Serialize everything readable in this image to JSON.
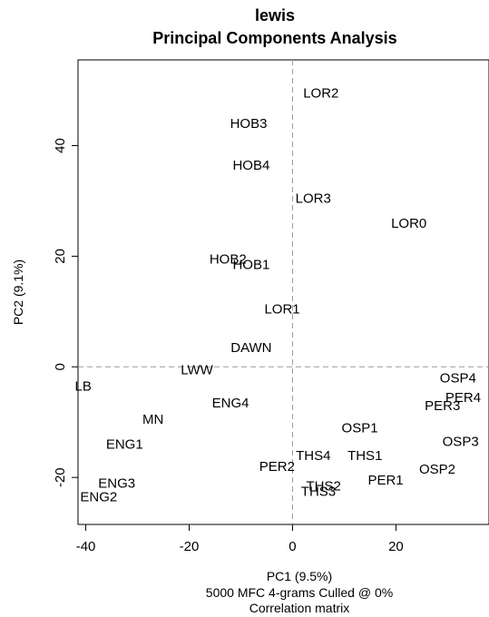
{
  "chart_data": {
    "type": "scatter",
    "title": "lewis",
    "subtitle": "Principal Components Analysis",
    "xlabel": "PC1 (9.5%)",
    "ylabel": "PC2 (9.1%)",
    "notes": [
      "5000 MFC 4-grams Culled @ 0%",
      "Correlation matrix"
    ],
    "xlim": [
      -41.5,
      38
    ],
    "ylim": [
      -28.5,
      55.5
    ],
    "xticks": [
      -40,
      -20,
      0,
      20
    ],
    "yticks": [
      -20,
      0,
      20,
      40
    ],
    "grid": false,
    "reference_lines": {
      "x": 0,
      "y": 0,
      "style": "dashed"
    },
    "points": [
      {
        "label": "LOR2",
        "x": 5.5,
        "y": 49.5
      },
      {
        "label": "HOB3",
        "x": -8.5,
        "y": 44.0
      },
      {
        "label": "HOB4",
        "x": -8.0,
        "y": 36.5
      },
      {
        "label": "LOR3",
        "x": 4.0,
        "y": 30.5
      },
      {
        "label": "LOR0",
        "x": 22.5,
        "y": 26.0
      },
      {
        "label": "HOB2",
        "x": -12.5,
        "y": 19.5
      },
      {
        "label": "HOB1",
        "x": -8.0,
        "y": 18.5
      },
      {
        "label": "LOR1",
        "x": -2.0,
        "y": 10.5
      },
      {
        "label": "DAWN",
        "x": -8.0,
        "y": 3.5
      },
      {
        "label": "LWW",
        "x": -18.5,
        "y": -0.5
      },
      {
        "label": "LB",
        "x": -40.5,
        "y": -3.5
      },
      {
        "label": "ENG4",
        "x": -12.0,
        "y": -6.5
      },
      {
        "label": "MN",
        "x": -27.0,
        "y": -9.5
      },
      {
        "label": "ENG1",
        "x": -32.5,
        "y": -14.0
      },
      {
        "label": "ENG3",
        "x": -34.0,
        "y": -21.0
      },
      {
        "label": "ENG2",
        "x": -37.5,
        "y": -23.5
      },
      {
        "label": "OSP4",
        "x": 32.0,
        "y": -2.0
      },
      {
        "label": "PER4",
        "x": 33.0,
        "y": -5.5
      },
      {
        "label": "PER3",
        "x": 29.0,
        "y": -7.0
      },
      {
        "label": "OSP3",
        "x": 32.5,
        "y": -13.5
      },
      {
        "label": "OSP1",
        "x": 13.0,
        "y": -11.0
      },
      {
        "label": "THS1",
        "x": 14.0,
        "y": -16.0
      },
      {
        "label": "THS4",
        "x": 4.0,
        "y": -16.0
      },
      {
        "label": "PER2",
        "x": -3.0,
        "y": -18.0
      },
      {
        "label": "OSP2",
        "x": 28.0,
        "y": -18.5
      },
      {
        "label": "PER1",
        "x": 18.0,
        "y": -20.5
      },
      {
        "label": "THS2",
        "x": 6.0,
        "y": -21.5
      },
      {
        "label": "THS3",
        "x": 5.0,
        "y": -22.5
      }
    ]
  }
}
